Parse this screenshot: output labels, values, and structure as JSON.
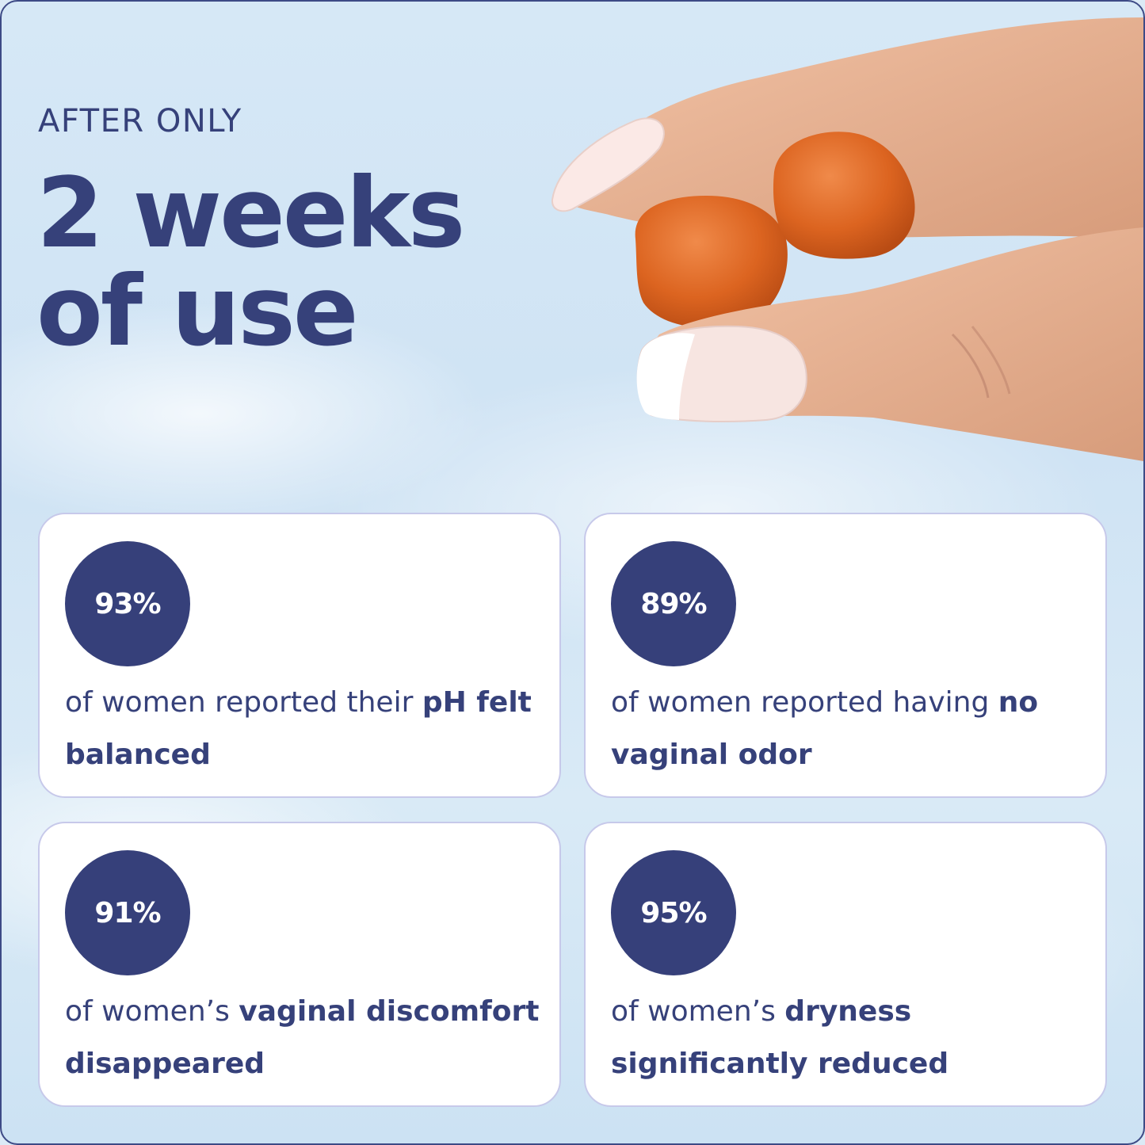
{
  "header": {
    "eyebrow": "AFTER ONLY",
    "headline_line1": "2 weeks",
    "headline_line2": "of use"
  },
  "stats": [
    {
      "value": "93%",
      "text_regular": "of women reported their ",
      "text_bold": "pH felt balanced"
    },
    {
      "value": "89%",
      "text_regular": "of women reported having ",
      "text_bold": "no vaginal odor"
    },
    {
      "value": "91%",
      "text_regular": "of women’s ",
      "text_bold": "vaginal discomfort disappeared"
    },
    {
      "value": "95%",
      "text_regular": "of women’s ",
      "text_bold": "dryness significantly reduced"
    }
  ],
  "image": {
    "subject": "hand-holding-two-orange-gummies"
  },
  "colors": {
    "navy": "#36407a",
    "card_border": "#c7c9ea",
    "gummy": "#d9641f"
  }
}
